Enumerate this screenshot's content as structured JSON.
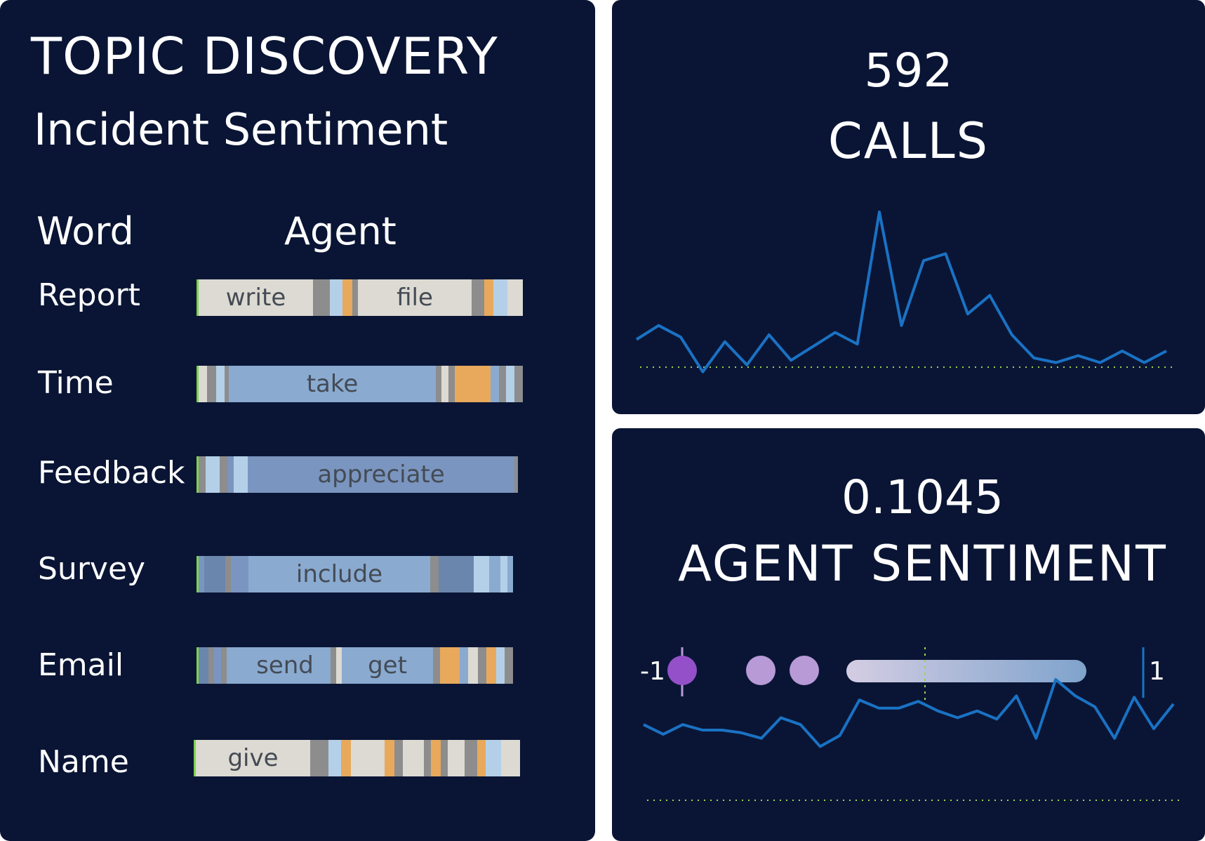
{
  "topic": {
    "title": "TOPIC DISCOVERY",
    "subtitle": "Incident Sentiment",
    "col_word": "Word",
    "col_agent": "Agent",
    "rows": [
      {
        "word": "Report",
        "labels": [
          "write",
          "file"
        ]
      },
      {
        "word": "Time",
        "labels": [
          "take"
        ]
      },
      {
        "word": "Feedback",
        "labels": [
          "appreciate"
        ]
      },
      {
        "word": "Survey",
        "labels": [
          "include"
        ]
      },
      {
        "word": "Email",
        "labels": [
          "send",
          "get"
        ]
      },
      {
        "word": "Name",
        "labels": [
          "give"
        ]
      }
    ]
  },
  "calls": {
    "value": "592",
    "label": "CALLS",
    "trend": [
      5,
      11,
      6,
      -9,
      4,
      -6,
      7,
      -4,
      2,
      8,
      3,
      60,
      11,
      39,
      42,
      16,
      24,
      7,
      -3,
      -5,
      -2,
      -5,
      0,
      -5,
      0
    ]
  },
  "agent_sentiment": {
    "value": "0.1045",
    "label": "AGENT SENTIMENT",
    "scale_min": "-1",
    "scale_max": "1",
    "trend": [
      0.04,
      -0.03,
      0.04,
      0.0,
      0.0,
      -0.02,
      -0.06,
      0.09,
      0.04,
      -0.12,
      -0.04,
      0.22,
      0.16,
      0.16,
      0.21,
      0.14,
      0.09,
      0.14,
      0.08,
      0.25,
      -0.06,
      0.37,
      0.25,
      0.17,
      -0.06,
      0.24,
      0.01,
      0.19
    ]
  },
  "colors": {
    "background": "#0a1535",
    "line": "#1a72c4",
    "baseline": "#9bd34a",
    "bar_beige": "#dcdad2",
    "bar_gray": "#8d8d8d",
    "bar_lightblue": "#b4d0e8",
    "bar_orange": "#e8a95c",
    "bar_blue": "#8aaad0",
    "bar_slate": "#7a95bf",
    "purple_dark": "#9450c8",
    "purple_light": "#b79ad6"
  }
}
